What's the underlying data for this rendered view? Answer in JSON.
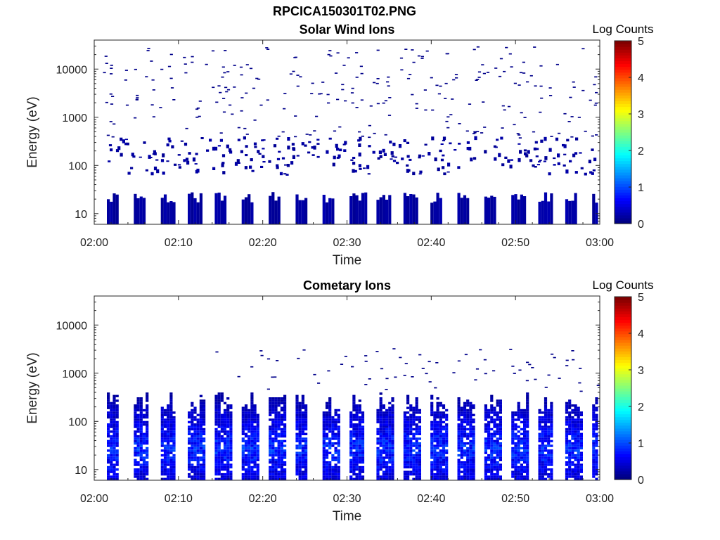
{
  "figure": {
    "title": "RPCICA150301T02.PNG"
  },
  "colormap": "jet",
  "chart_data": [
    {
      "type": "heatmap",
      "title": "Solar Wind Ions",
      "xlabel": "Time",
      "ylabel": "Energy (eV)",
      "x_range": [
        "02:00",
        "03:00"
      ],
      "x_ticks": [
        "02:00",
        "02:10",
        "02:20",
        "02:30",
        "02:40",
        "02:50",
        "03:00"
      ],
      "y_scale": "log",
      "y_range": [
        6,
        40000
      ],
      "y_ticks": [
        {
          "value": 10,
          "label": "10"
        },
        {
          "value": 100,
          "label": "100"
        },
        {
          "value": 1000,
          "label": "1000"
        },
        {
          "value": 10000,
          "label": "10000"
        }
      ],
      "colorbar": {
        "label": "Log Counts",
        "range": [
          0,
          5
        ],
        "ticks": [
          "0",
          "1",
          "2",
          "3",
          "4",
          "5"
        ]
      },
      "features": {
        "low_energy_band": {
          "energy_range_eV": [
            6,
            28
          ],
          "intensity_log_counts": 0.1,
          "pulse_period_min": 3.2,
          "first_pulse_min": 1.5
        },
        "mid_energy_band": {
          "energy_range_eV": [
            60,
            350
          ],
          "intensity_log_counts": 0.1
        },
        "sparse_high_energy": {
          "energy_range_eV": [
            350,
            28000
          ],
          "intensity_log_counts": 0.05
        }
      }
    },
    {
      "type": "heatmap",
      "title": "Cometary Ions",
      "xlabel": "Time",
      "ylabel": "Energy (eV)",
      "x_range": [
        "02:00",
        "03:00"
      ],
      "x_ticks": [
        "02:00",
        "02:10",
        "02:20",
        "02:30",
        "02:40",
        "02:50",
        "03:00"
      ],
      "y_scale": "log",
      "y_range": [
        6,
        40000
      ],
      "y_ticks": [
        {
          "value": 10,
          "label": "10"
        },
        {
          "value": 100,
          "label": "100"
        },
        {
          "value": 1000,
          "label": "1000"
        },
        {
          "value": 10000,
          "label": "10000"
        }
      ],
      "colorbar": {
        "label": "Log Counts",
        "range": [
          0,
          5
        ],
        "ticks": [
          "0",
          "1",
          "2",
          "3",
          "4",
          "5"
        ]
      },
      "features": {
        "pulse_columns": {
          "energy_range_eV": [
            6,
            400
          ],
          "peak_energy_eV": [
            10,
            100
          ],
          "peak_log_counts": 1.0,
          "pulse_period_min": 3.2,
          "first_pulse_min": 1.5
        },
        "sparse_high_energy": {
          "energy_range_eV": [
            400,
            8000
          ],
          "intensity_log_counts": 0.05
        }
      }
    }
  ]
}
